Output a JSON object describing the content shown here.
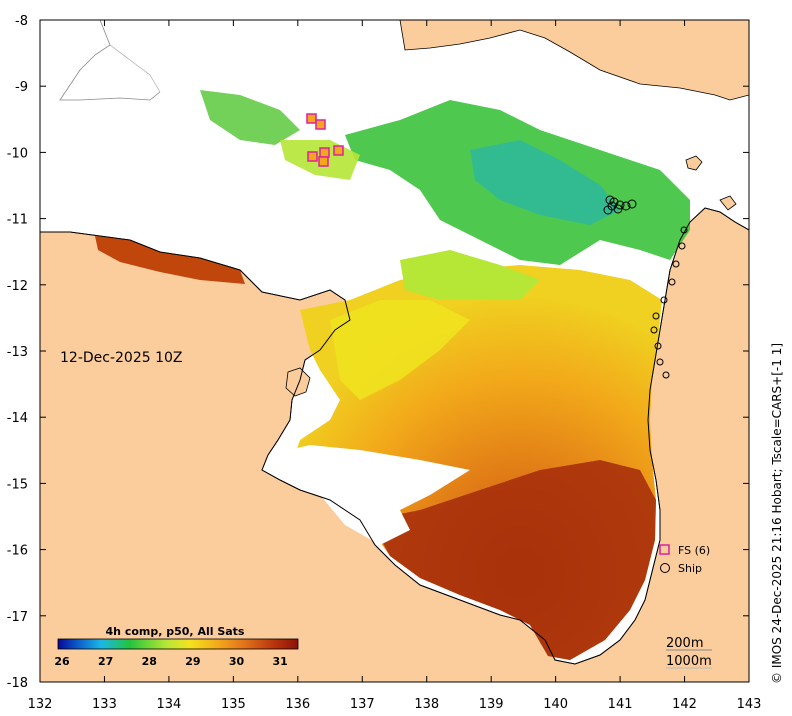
{
  "map": {
    "date_label": "12-Dec-2025 10Z",
    "lon_ticks": [
      "132",
      "133",
      "134",
      "135",
      "136",
      "137",
      "138",
      "139",
      "140",
      "141",
      "142",
      "143"
    ],
    "lat_ticks": [
      "-8",
      "-9",
      "-10",
      "-11",
      "-12",
      "-13",
      "-14",
      "-15",
      "-16",
      "-17",
      "-18"
    ],
    "lon_range": [
      132,
      143
    ],
    "lat_range": [
      -18,
      -8
    ],
    "colors": {
      "land": "#fbcc9c",
      "no_data": "#ffffff"
    }
  },
  "colorbar": {
    "title": "4h comp, p50, All Sats",
    "ticks": [
      "26",
      "27",
      "28",
      "29",
      "30",
      "31"
    ],
    "range": [
      26,
      31.5
    ],
    "colors": [
      "#08069a",
      "#0b5ac8",
      "#1bb8e6",
      "#24c43c",
      "#b6e636",
      "#f4e21e",
      "#f2a81a",
      "#e1701a",
      "#b8350c",
      "#8c1208"
    ]
  },
  "legend": {
    "items": [
      {
        "label": "FS (6)",
        "icon": "square-marker-icon",
        "color": "#e0209e"
      },
      {
        "label": "Ship",
        "icon": "circle-marker-icon",
        "color": "#000000"
      }
    ]
  },
  "contours": {
    "labels": [
      "200m",
      "1000m"
    ]
  },
  "credit": "© IMOS 24-Dec-2025 21:16 Hobart; Tscale=CARS+[-1 1]"
}
